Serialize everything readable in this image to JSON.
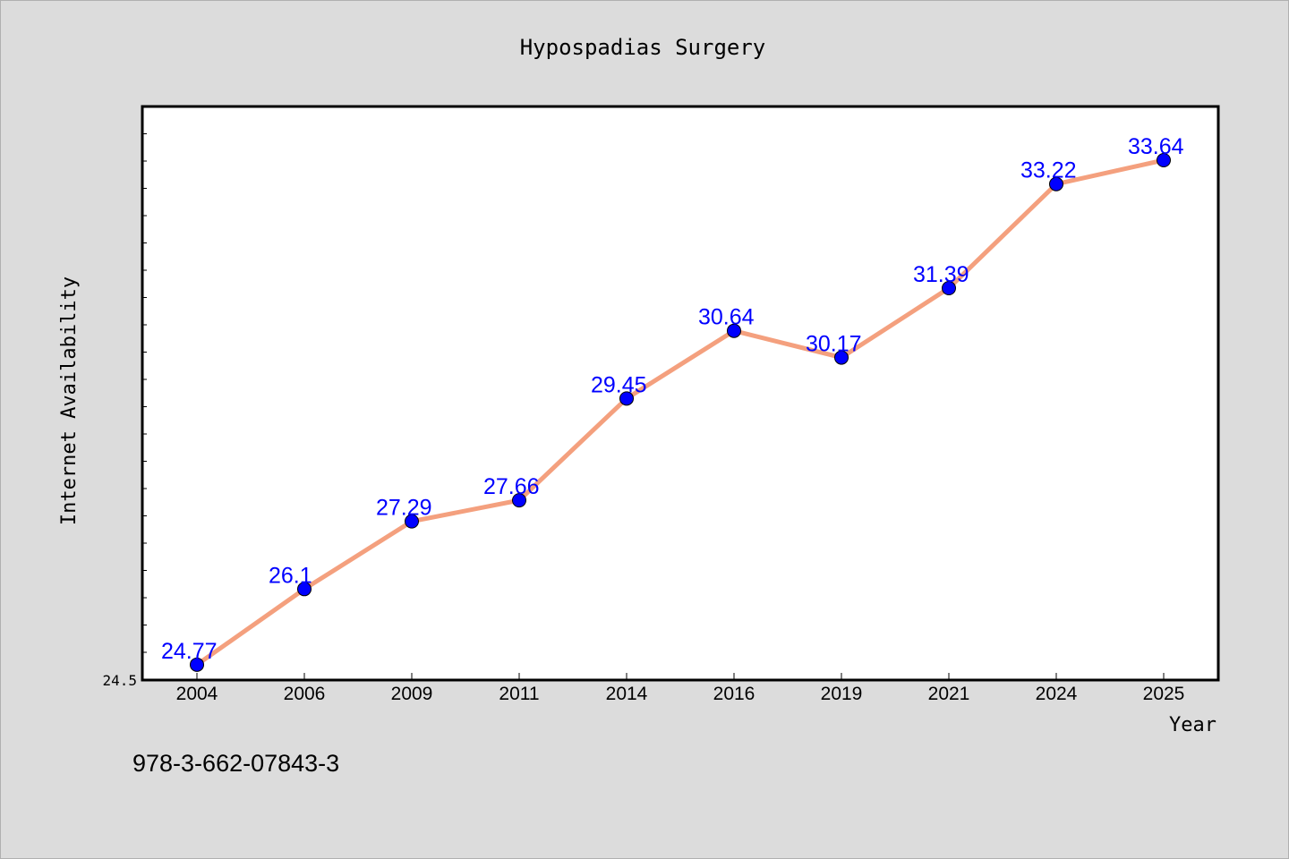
{
  "chart_data": {
    "type": "line",
    "title": "Hypospadias Surgery",
    "xlabel": "Year",
    "ylabel": "Internet Availability",
    "categories": [
      "2004",
      "2006",
      "2009",
      "2011",
      "2014",
      "2016",
      "2019",
      "2021",
      "2024",
      "2025"
    ],
    "series": [
      {
        "values": [
          24.77,
          26.1,
          27.29,
          27.66,
          29.45,
          30.64,
          30.17,
          31.39,
          33.22,
          33.64
        ],
        "data_labels": [
          "24.77",
          "26.1",
          "27.29",
          "27.66",
          "29.45",
          "30.64",
          "30.17",
          "31.39",
          "33.22",
          "33.64"
        ]
      }
    ],
    "yticks": [
      {
        "value": 24.5,
        "label": "24.5"
      }
    ],
    "ylim": [
      24.5,
      35.0
    ],
    "grid": false,
    "line_color": "#f4a07e",
    "marker_color": "#0000ff",
    "label_color": "#0000ff"
  },
  "footnote": "978-3-662-07843-3"
}
